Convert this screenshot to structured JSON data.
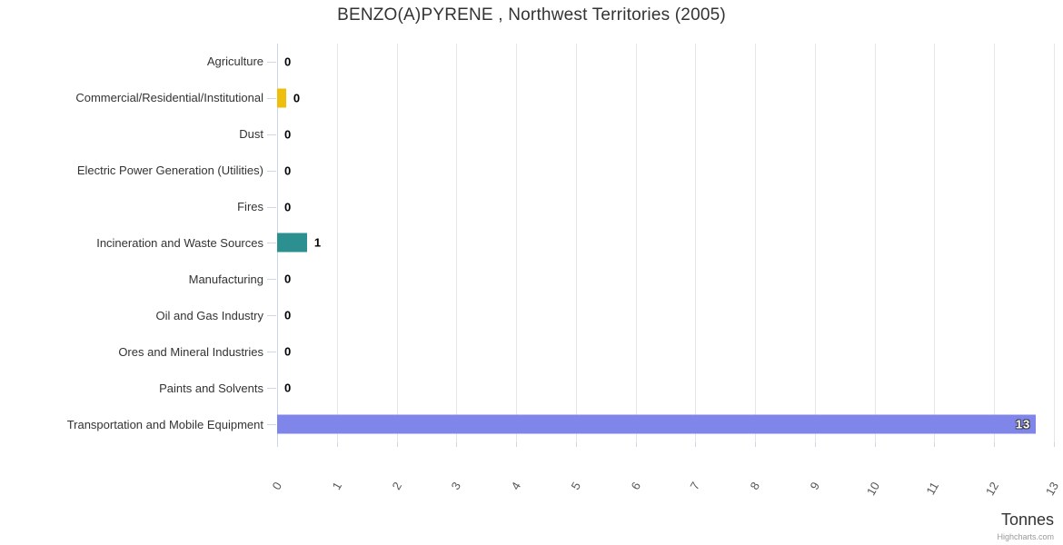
{
  "chart": {
    "title": "BENZO(A)PYRENE , Northwest Territories (2005)",
    "credits": "Highcharts.com"
  },
  "chart_data": {
    "type": "bar",
    "orientation": "horizontal",
    "title": "BENZO(A)PYRENE , Northwest Territories (2005)",
    "xlabel": "Tonnes",
    "ylabel": "",
    "xlim": [
      0,
      13
    ],
    "xticks": [
      0,
      1,
      2,
      3,
      4,
      5,
      6,
      7,
      8,
      9,
      10,
      11,
      12,
      13
    ],
    "grid": true,
    "legend": false,
    "categories": [
      "Agriculture",
      "Commercial/Residential/Institutional",
      "Dust",
      "Electric Power Generation (Utilities)",
      "Fires",
      "Incineration and Waste Sources",
      "Manufacturing",
      "Oil and Gas Industry",
      "Ores and Mineral Industries",
      "Paints and Solvents",
      "Transportation and Mobile Equipment"
    ],
    "values": [
      0,
      0.15,
      0,
      0,
      0,
      0.5,
      0,
      0,
      0,
      0,
      12.7
    ],
    "value_labels": [
      "0",
      "0",
      "0",
      "0",
      "0",
      "1",
      "0",
      "0",
      "0",
      "0",
      "13"
    ],
    "colors": [
      null,
      "#EFBE0D",
      null,
      null,
      null,
      "#2B908F",
      null,
      null,
      null,
      null,
      "#8085E9"
    ],
    "gridline_color": "#e6e6e6",
    "axis_line_color": "#ccd6eb"
  }
}
